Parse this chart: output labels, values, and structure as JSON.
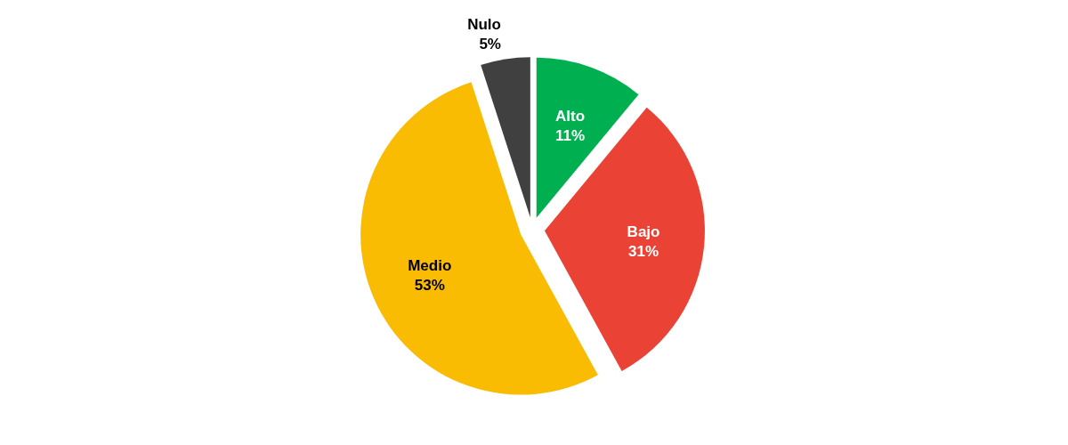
{
  "chart_data": {
    "type": "pie",
    "categories": [
      "Alto",
      "Bajo",
      "Medio",
      "Nulo"
    ],
    "values": [
      11,
      31,
      53,
      5
    ],
    "value_labels": [
      "11%",
      "31%",
      "53%",
      "5%"
    ],
    "colors": [
      "#00b050",
      "#ea4335",
      "#f9bc02",
      "#404040"
    ],
    "legend": false
  }
}
